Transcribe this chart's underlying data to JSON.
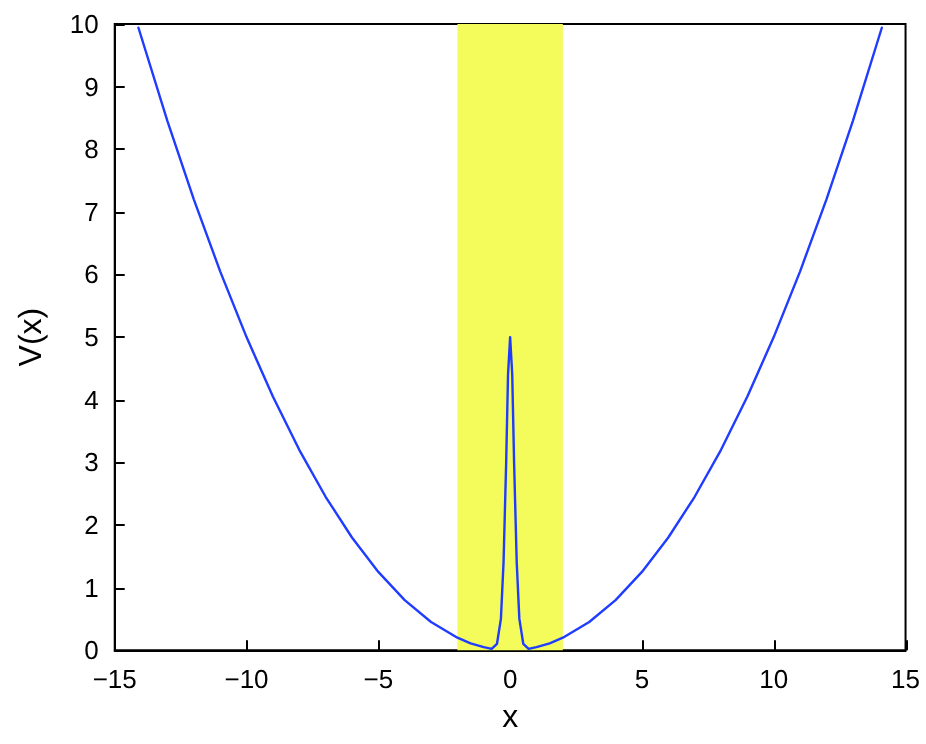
{
  "chart_data": {
    "type": "line",
    "xlabel": "x",
    "ylabel": "V(x)",
    "series": [
      {
        "color": "#1f3cff",
        "x": [
          -14.1,
          -13,
          -12,
          -11,
          -10,
          -9,
          -8,
          -7,
          -6,
          -5,
          -4,
          -3,
          -2,
          -1.5,
          -1,
          -0.7,
          -0.5,
          -0.35,
          -0.25,
          -0.15,
          -0.08,
          0,
          0.08,
          0.15,
          0.25,
          0.35,
          0.5,
          0.7,
          1,
          1.5,
          2,
          3,
          4,
          5,
          6,
          7,
          8,
          9,
          10,
          11,
          12,
          13,
          14.1
        ],
        "values": [
          9.94,
          8.45,
          7.2,
          6.05,
          5,
          4.05,
          3.2,
          2.45,
          1.8,
          1.25,
          0.8,
          0.45,
          0.2,
          0.11,
          0.05,
          0.02,
          0.1,
          0.5,
          1.4,
          3.0,
          4.4,
          5,
          4.4,
          3.0,
          1.4,
          0.5,
          0.1,
          0.02,
          0.05,
          0.11,
          0.2,
          0.45,
          0.8,
          1.25,
          1.8,
          2.45,
          3.2,
          4.05,
          5,
          6.05,
          7.2,
          8.45,
          9.94
        ]
      }
    ],
    "bands": [
      {
        "axis": "x",
        "from": -2,
        "to": 2,
        "color": "#f4fc5c"
      }
    ],
    "xlim": [
      -15,
      15
    ],
    "xticks": [
      -15,
      -10,
      -5,
      0,
      5,
      10,
      15
    ],
    "ylim": [
      0,
      10
    ],
    "yticks": [
      0,
      1,
      2,
      3,
      4,
      5,
      6,
      7,
      8,
      9,
      10
    ],
    "grid": false,
    "marker": "none",
    "line_style": "solid"
  }
}
